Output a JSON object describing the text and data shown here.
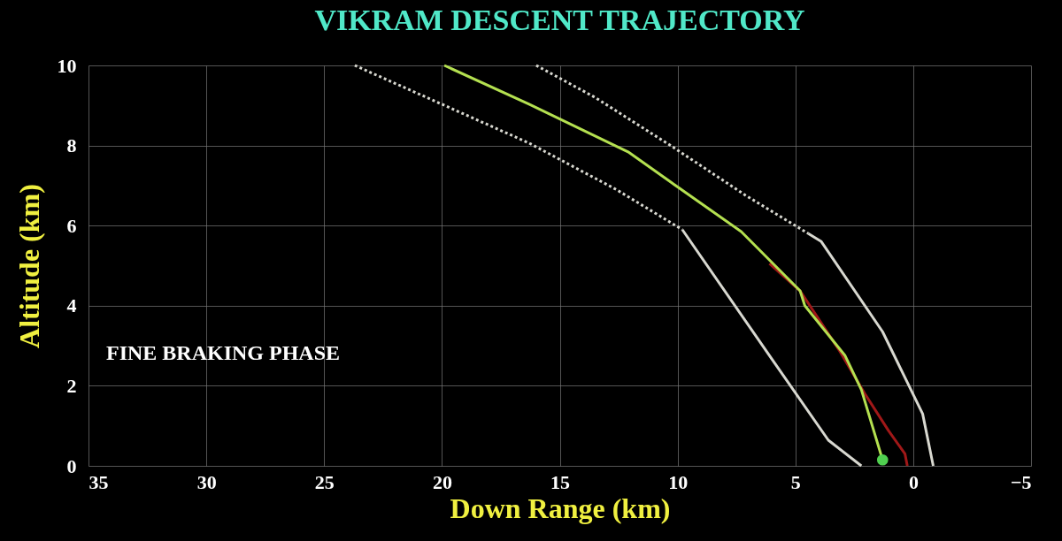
{
  "chart_data": {
    "type": "line",
    "title": "VIKRAM DESCENT TRAJECTORY",
    "xlabel": "Down Range (km)",
    "ylabel": "Altitude (km)",
    "xlim": [
      35,
      -5
    ],
    "xticks": [
      35,
      30,
      25,
      20,
      15,
      10,
      5,
      0,
      -5
    ],
    "ylim": [
      0,
      10
    ],
    "yticks": [
      0,
      2,
      4,
      6,
      8,
      10
    ],
    "grid": true,
    "annotations": [
      "FINE BRAKING PHASE"
    ],
    "series": [
      {
        "line_style": "dotted",
        "color": "#d8d8d0",
        "x": [
          23.7,
          16.3,
          12.6,
          9.8
        ],
        "values": [
          10,
          8.06,
          6.9,
          5.9
        ]
      },
      {
        "line_style": "solid",
        "color": "#d8d8d0",
        "x": [
          9.8,
          6.0,
          3.6,
          2.2
        ],
        "values": [
          5.9,
          2.67,
          0.64,
          0
        ]
      },
      {
        "line_style": "dotted",
        "color": "#d8d8d0",
        "x": [
          16.0,
          13.5,
          10.3,
          7.1,
          4.45
        ],
        "values": [
          10,
          9.2,
          8.0,
          6.75,
          5.8
        ]
      },
      {
        "line_style": "solid",
        "color": "#d8d8d0",
        "x": [
          4.45,
          3.9,
          1.3,
          -0.4,
          -0.85
        ],
        "values": [
          5.8,
          5.6,
          3.35,
          1.3,
          0
        ]
      },
      {
        "line_style": "solid",
        "color": "#a01818",
        "x": [
          6.1,
          4.8,
          3.1,
          2.05,
          1.05,
          0.35,
          0.25
        ],
        "values": [
          5.05,
          4.37,
          2.85,
          1.8,
          0.88,
          0.3,
          0
        ]
      },
      {
        "line_style": "solid",
        "color": "#b4e050",
        "x": [
          19.9,
          16.3,
          12.1,
          10.3,
          7.3,
          4.8,
          4.6,
          2.9,
          2.2,
          1.3
        ],
        "values": [
          10,
          9.03,
          7.84,
          7.09,
          5.85,
          4.37,
          4.0,
          2.76,
          1.9,
          0.15
        ]
      },
      {
        "type": "scatter",
        "color": "#50d050",
        "x": [
          1.3
        ],
        "values": [
          0.15
        ]
      }
    ]
  }
}
